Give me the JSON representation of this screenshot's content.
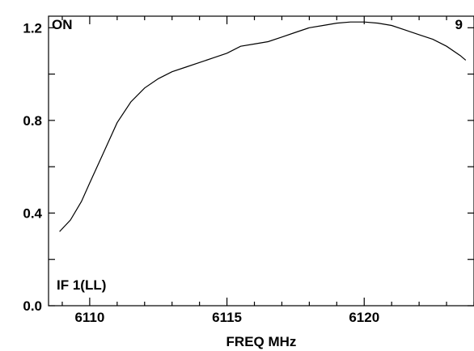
{
  "chart_data": {
    "type": "line",
    "title": "",
    "xlabel": "FREQ MHz",
    "ylabel": "",
    "xlim": [
      6108.5,
      6124.0
    ],
    "ylim": [
      0.0,
      1.25
    ],
    "xticks": [
      6110,
      6115,
      6120
    ],
    "xtick_labels": [
      "6110",
      "6115",
      "6120"
    ],
    "yticks": [
      0.0,
      0.4,
      0.8,
      1.2
    ],
    "ytick_labels": [
      "0.0",
      "0.4",
      "0.8",
      "1.2"
    ],
    "grid": false,
    "annotations": {
      "top_left": "ON",
      "top_right": "9",
      "bottom_left": "IF 1(LL)"
    },
    "series": [
      {
        "x": [
          6108.9,
          6109.3,
          6109.7,
          6110.0,
          6110.5,
          6111.0,
          6111.5,
          6112.0,
          6112.5,
          6113.0,
          6113.5,
          6114.0,
          6114.5,
          6115.0,
          6115.5,
          6116.0,
          6116.5,
          6117.0,
          6117.5,
          6118.0,
          6118.5,
          6119.0,
          6119.5,
          6120.0,
          6120.5,
          6121.0,
          6121.5,
          6122.0,
          6122.5,
          6123.0,
          6123.5,
          6123.7
        ],
        "y": [
          0.32,
          0.37,
          0.45,
          0.53,
          0.66,
          0.79,
          0.88,
          0.94,
          0.98,
          1.01,
          1.03,
          1.05,
          1.07,
          1.09,
          1.12,
          1.13,
          1.14,
          1.16,
          1.18,
          1.2,
          1.21,
          1.22,
          1.225,
          1.225,
          1.22,
          1.21,
          1.19,
          1.17,
          1.15,
          1.12,
          1.08,
          1.06
        ]
      }
    ]
  }
}
